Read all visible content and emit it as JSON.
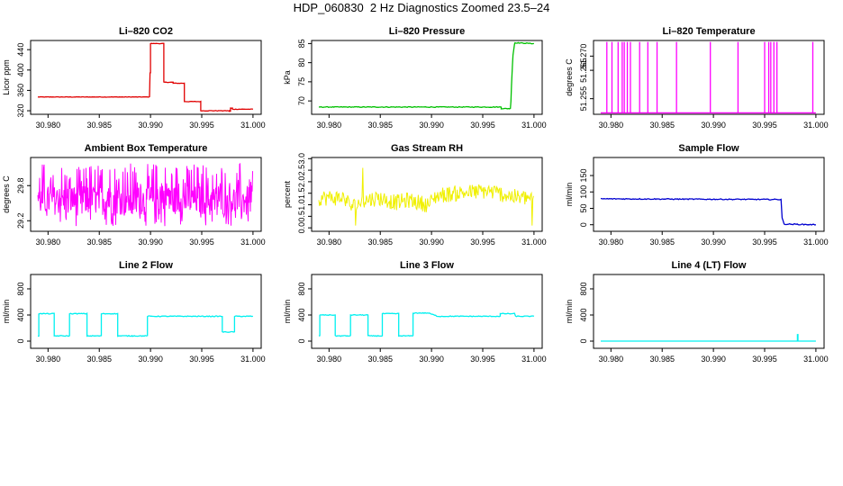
{
  "page_title": "HDP_060830  2 Hz Diagnostics Zoomed 23.5–24",
  "x_ticks": [
    "30.980",
    "30.985",
    "30.990",
    "30.995",
    "31.000"
  ],
  "colors": {
    "red": "#e00000",
    "green": "#00c000",
    "magenta": "#ff00ff",
    "yellow": "#f0f000",
    "blue": "#0000d0",
    "cyan": "#00f0f0"
  },
  "chart_data": [
    {
      "type": "line",
      "title": "Li–820 CO2",
      "ylabel": "Licor ppm",
      "color": "red",
      "xlim": [
        30.9783,
        31.0008
      ],
      "ylim": [
        313,
        458
      ],
      "yticks": [
        {
          "v": 320,
          "l": "320"
        },
        {
          "v": 360,
          "l": "360"
        },
        {
          "v": 400,
          "l": "400"
        },
        {
          "v": 440,
          "l": "440"
        }
      ],
      "noise": 0.5,
      "x": [
        30.979,
        30.9899,
        30.98995,
        30.99,
        30.99,
        30.9913,
        30.9913,
        30.9922,
        30.9922,
        30.9933,
        30.9933,
        30.9949,
        30.9949,
        30.9977,
        30.9977,
        30.9978,
        30.9978,
        30.998,
        30.998,
        31.0
      ],
      "y": [
        347,
        347,
        395,
        395,
        452,
        452,
        376,
        376,
        374,
        374,
        338,
        338,
        320,
        320,
        319,
        319,
        325,
        325,
        323,
        323
      ]
    },
    {
      "type": "line",
      "title": "Li–820 Pressure",
      "ylabel": "kPa",
      "color": "green",
      "xlim": [
        30.9783,
        31.0008
      ],
      "ylim": [
        66.5,
        85.8
      ],
      "yticks": [
        {
          "v": 70,
          "l": "70"
        },
        {
          "v": 75,
          "l": "75"
        },
        {
          "v": 80,
          "l": "80"
        },
        {
          "v": 85,
          "l": "85"
        }
      ],
      "noise": 0.1,
      "x": [
        30.979,
        30.9968,
        30.9968,
        30.9977,
        30.99775,
        30.9978,
        30.9979,
        30.99795,
        30.9981,
        30.99815,
        31.0
      ],
      "y": [
        68.4,
        68.4,
        68.0,
        68.0,
        70.0,
        74.0,
        79.5,
        82.0,
        84.9,
        85.2,
        85.0
      ]
    },
    {
      "type": "spikes",
      "title": "Li–820 Temperature",
      "ylabel": "degrees C",
      "color": "magenta",
      "xlim": [
        30.9783,
        31.0008
      ],
      "ylim": [
        51.2495,
        51.2755
      ],
      "yticks": [
        {
          "v": 51.255,
          "l": "51.255"
        },
        {
          "v": 51.265,
          "l": "51.265"
        },
        {
          "v": 51.27,
          "l": "51.270"
        }
      ],
      "baseline": 51.25,
      "x": [
        30.9796,
        30.9801,
        30.9807,
        30.9811,
        30.9813,
        30.9816,
        30.9819,
        30.9828,
        30.9836,
        30.9845,
        30.9864,
        30.9897,
        30.9924,
        30.995,
        30.9954,
        30.9956,
        30.9959,
        30.9962,
        30.9997
      ],
      "y": [
        51.275,
        51.275,
        51.275,
        51.275,
        51.275,
        51.275,
        51.275,
        51.275,
        51.275,
        51.275,
        51.275,
        51.275,
        51.275,
        51.275,
        51.275,
        51.275,
        51.275,
        51.275,
        51.275
      ]
    },
    {
      "type": "noise",
      "title": "Ambient Box Temperature",
      "ylabel": "degrees C",
      "color": "magenta",
      "xlim": [
        30.9783,
        31.0008
      ],
      "ylim": [
        29.02,
        30.28
      ],
      "yticks": [
        {
          "v": 29.2,
          "l": "29.2"
        },
        {
          "v": 29.8,
          "l": "29.8"
        }
      ],
      "x": [
        30.979,
        31.0
      ],
      "y_low": 29.1,
      "y_high": 30.2,
      "y_mid": 29.55
    },
    {
      "type": "noise",
      "title": "Gas Stream RH",
      "ylabel": "percent",
      "color": "yellow",
      "xlim": [
        30.9783,
        31.0008
      ],
      "ylim": [
        -0.15,
        3.05
      ],
      "yticks": [
        {
          "v": 0.0,
          "l": "0.0"
        },
        {
          "v": 0.5,
          "l": "0.5"
        },
        {
          "v": 1.0,
          "l": "1.0"
        },
        {
          "v": 1.5,
          "l": "1.5"
        },
        {
          "v": 2.0,
          "l": "2.0"
        },
        {
          "v": 2.5,
          "l": "2.5"
        },
        {
          "v": 3.0,
          "l": "3.0"
        }
      ],
      "x": [
        30.979,
        30.9815,
        30.9822,
        30.9835,
        30.9848,
        30.9865,
        30.9878,
        30.9897,
        30.9905,
        30.9925,
        30.9955,
        30.9985,
        31.0
      ],
      "y": [
        1.3,
        1.3,
        0.9,
        1.2,
        1.3,
        1.1,
        1.2,
        1.0,
        1.4,
        1.5,
        1.6,
        1.3,
        1.3
      ],
      "amp": 0.35
    },
    {
      "type": "line",
      "title": "Sample Flow",
      "ylabel": "ml/min",
      "color": "blue",
      "xlim": [
        30.9783,
        31.0008
      ],
      "ylim": [
        -20,
        205
      ],
      "yticks": [
        {
          "v": 0,
          "l": "0"
        },
        {
          "v": 50,
          "l": "50"
        },
        {
          "v": 100,
          "l": "100"
        },
        {
          "v": 150,
          "l": "150"
        }
      ],
      "noise": 1.5,
      "x": [
        30.979,
        30.9965,
        30.9966,
        30.9967,
        30.9969,
        31.0
      ],
      "y": [
        79,
        77,
        78,
        20,
        2,
        0
      ]
    },
    {
      "type": "line",
      "title": "Line 2 Flow",
      "ylabel": "ml/min",
      "color": "cyan",
      "xlim": [
        30.9783,
        31.0008
      ],
      "ylim": [
        -110,
        1020
      ],
      "yticks": [
        {
          "v": 0,
          "l": "0"
        },
        {
          "v": 400,
          "l": "400"
        },
        {
          "v": 800,
          "l": "800"
        }
      ],
      "noise": 6,
      "x": [
        30.979,
        30.9791,
        30.9791,
        30.9806,
        30.9806,
        30.9821,
        30.9821,
        30.9838,
        30.9838,
        30.9852,
        30.9852,
        30.9868,
        30.9868,
        30.9882,
        30.9882,
        30.9897,
        30.9897,
        30.997,
        30.997,
        30.9982,
        30.9982,
        31.0
      ],
      "y": [
        80,
        80,
        420,
        420,
        80,
        80,
        420,
        420,
        80,
        80,
        420,
        420,
        80,
        80,
        80,
        80,
        380,
        380,
        140,
        140,
        380,
        380
      ]
    },
    {
      "type": "line",
      "title": "Line 3 Flow",
      "ylabel": "ml/min",
      "color": "cyan",
      "xlim": [
        30.9783,
        31.0008
      ],
      "ylim": [
        -110,
        1020
      ],
      "yticks": [
        {
          "v": 0,
          "l": "0"
        },
        {
          "v": 400,
          "l": "400"
        },
        {
          "v": 800,
          "l": "800"
        }
      ],
      "noise": 6,
      "x": [
        30.979,
        30.9791,
        30.9791,
        30.9806,
        30.9806,
        30.9821,
        30.9821,
        30.9838,
        30.9838,
        30.9852,
        30.9852,
        30.9868,
        30.9868,
        30.9882,
        30.9882,
        30.9897,
        30.9906,
        30.9967,
        30.9967,
        30.9981,
        30.9982,
        31.0
      ],
      "y": [
        80,
        80,
        400,
        400,
        80,
        80,
        400,
        400,
        80,
        80,
        420,
        420,
        80,
        80,
        430,
        430,
        380,
        380,
        420,
        420,
        380,
        380
      ]
    },
    {
      "type": "line",
      "title": "Line 4 (LT) Flow",
      "ylabel": "ml/min",
      "color": "cyan",
      "xlim": [
        30.9783,
        31.0008
      ],
      "ylim": [
        -110,
        1020
      ],
      "yticks": [
        {
          "v": 0,
          "l": "0"
        },
        {
          "v": 400,
          "l": "400"
        },
        {
          "v": 800,
          "l": "800"
        }
      ],
      "noise": 0,
      "x": [
        30.979,
        30.9982,
        30.9982,
        30.99825,
        30.99825,
        31.0
      ],
      "y": [
        0,
        0,
        100,
        100,
        0,
        0
      ]
    }
  ]
}
